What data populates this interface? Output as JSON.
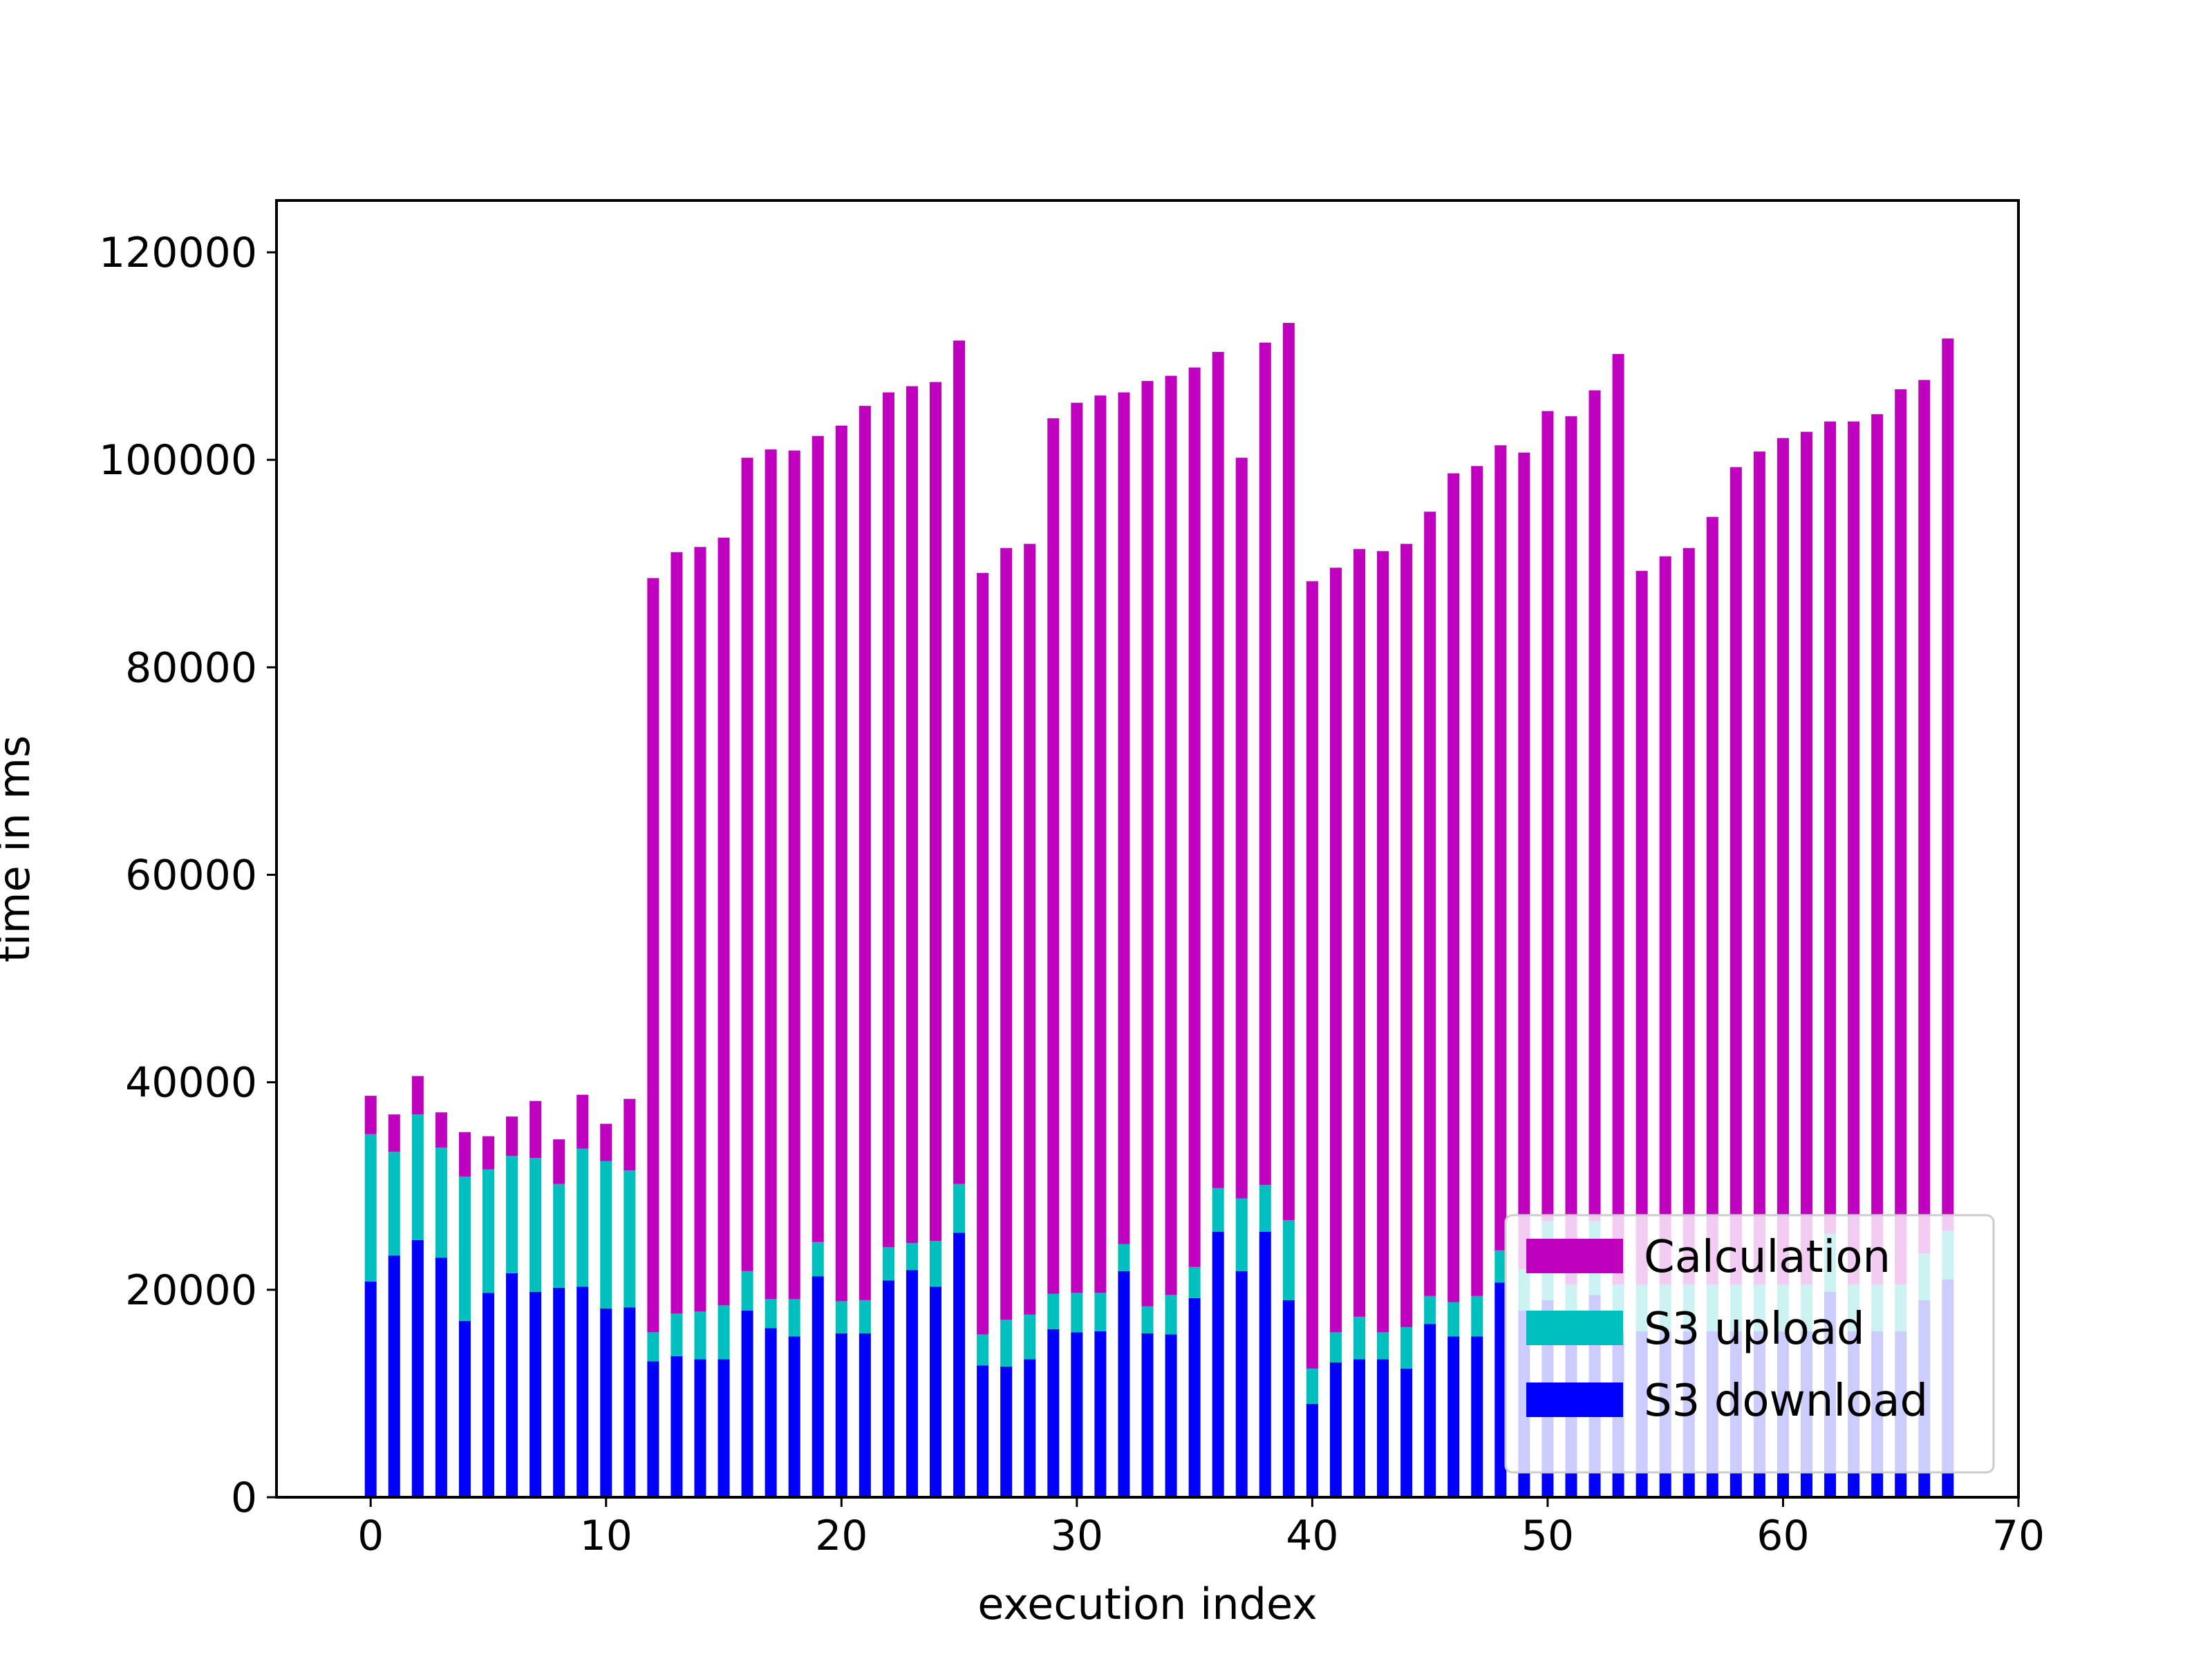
{
  "chart_data": {
    "type": "bar",
    "stacked": true,
    "xlabel": "execution index",
    "ylabel": "time in ms",
    "xlim": [
      -4,
      70
    ],
    "ylim": [
      0,
      125000
    ],
    "xticks": [
      0,
      10,
      20,
      30,
      40,
      50,
      60,
      70
    ],
    "yticks": [
      0,
      20000,
      40000,
      60000,
      80000,
      100000,
      120000
    ],
    "grid": false,
    "legend_position": "lower right",
    "legend_order": [
      "Calculation",
      "S3 upload",
      "S3 download"
    ],
    "x": [
      0,
      1,
      2,
      3,
      4,
      5,
      6,
      7,
      8,
      9,
      10,
      11,
      12,
      13,
      14,
      15,
      16,
      17,
      18,
      19,
      20,
      21,
      22,
      23,
      24,
      25,
      26,
      27,
      28,
      29,
      30,
      31,
      32,
      33,
      34,
      35,
      36,
      37,
      38,
      39,
      40,
      41,
      42,
      43,
      44,
      45,
      46,
      47,
      48,
      49,
      50,
      51,
      52,
      53,
      54,
      55,
      56,
      57,
      58,
      59,
      60,
      61,
      62,
      63,
      64,
      65,
      66,
      67
    ],
    "series": [
      {
        "name": "S3 download",
        "color": "#0000ff",
        "values": [
          20800,
          23300,
          24800,
          23100,
          17000,
          19700,
          21600,
          19800,
          20200,
          20300,
          18200,
          18300,
          13100,
          13600,
          13300,
          13300,
          18000,
          16300,
          15500,
          21300,
          15800,
          15800,
          20900,
          21900,
          20300,
          25500,
          12700,
          12600,
          13300,
          16200,
          15900,
          16000,
          21800,
          15800,
          15700,
          19200,
          25600,
          21800,
          25600,
          19000,
          9000,
          13000,
          13300,
          13300,
          12400,
          16700,
          15500,
          15500,
          20700,
          18000,
          19000,
          16000,
          19500,
          16000,
          16000,
          16000,
          16000,
          16000,
          16000,
          16000,
          16000,
          16000,
          19800,
          16000,
          16000,
          16000,
          19000,
          21000
        ]
      },
      {
        "name": "S3 upload",
        "color": "#00bfbf",
        "values": [
          14200,
          10000,
          12100,
          10600,
          13900,
          11900,
          11300,
          12900,
          10000,
          13300,
          14200,
          13200,
          2800,
          4100,
          4600,
          5200,
          3800,
          2800,
          3600,
          3300,
          3100,
          3200,
          3200,
          2600,
          4400,
          4700,
          3000,
          4500,
          4300,
          3400,
          3800,
          3700,
          2600,
          2600,
          3800,
          3000,
          4200,
          7000,
          4500,
          7700,
          3400,
          2900,
          4100,
          2600,
          4000,
          2700,
          3300,
          3900,
          3100,
          4000,
          7600,
          4500,
          7100,
          4500,
          4500,
          4500,
          4500,
          4500,
          4500,
          4500,
          4500,
          4500,
          5600,
          4500,
          4500,
          4500,
          4500,
          4700
        ]
      },
      {
        "name": "Calculation",
        "color": "#bf00bf",
        "values": [
          3700,
          3600,
          3700,
          3400,
          4300,
          3200,
          3800,
          5500,
          4300,
          5200,
          3600,
          6900,
          72700,
          73400,
          73700,
          74000,
          78400,
          81900,
          81800,
          77700,
          84400,
          86200,
          82400,
          82600,
          82800,
          81300,
          73400,
          74400,
          74300,
          84400,
          85800,
          86500,
          82100,
          89200,
          88600,
          86700,
          80600,
          71400,
          81200,
          86500,
          75900,
          73700,
          74000,
          75300,
          75500,
          75600,
          79900,
          80000,
          77600,
          78700,
          78100,
          83700,
          80100,
          89700,
          68800,
          70200,
          71000,
          74000,
          78800,
          80300,
          81600,
          82200,
          78300,
          83200,
          83900,
          86300,
          84200,
          86000
        ]
      }
    ]
  }
}
